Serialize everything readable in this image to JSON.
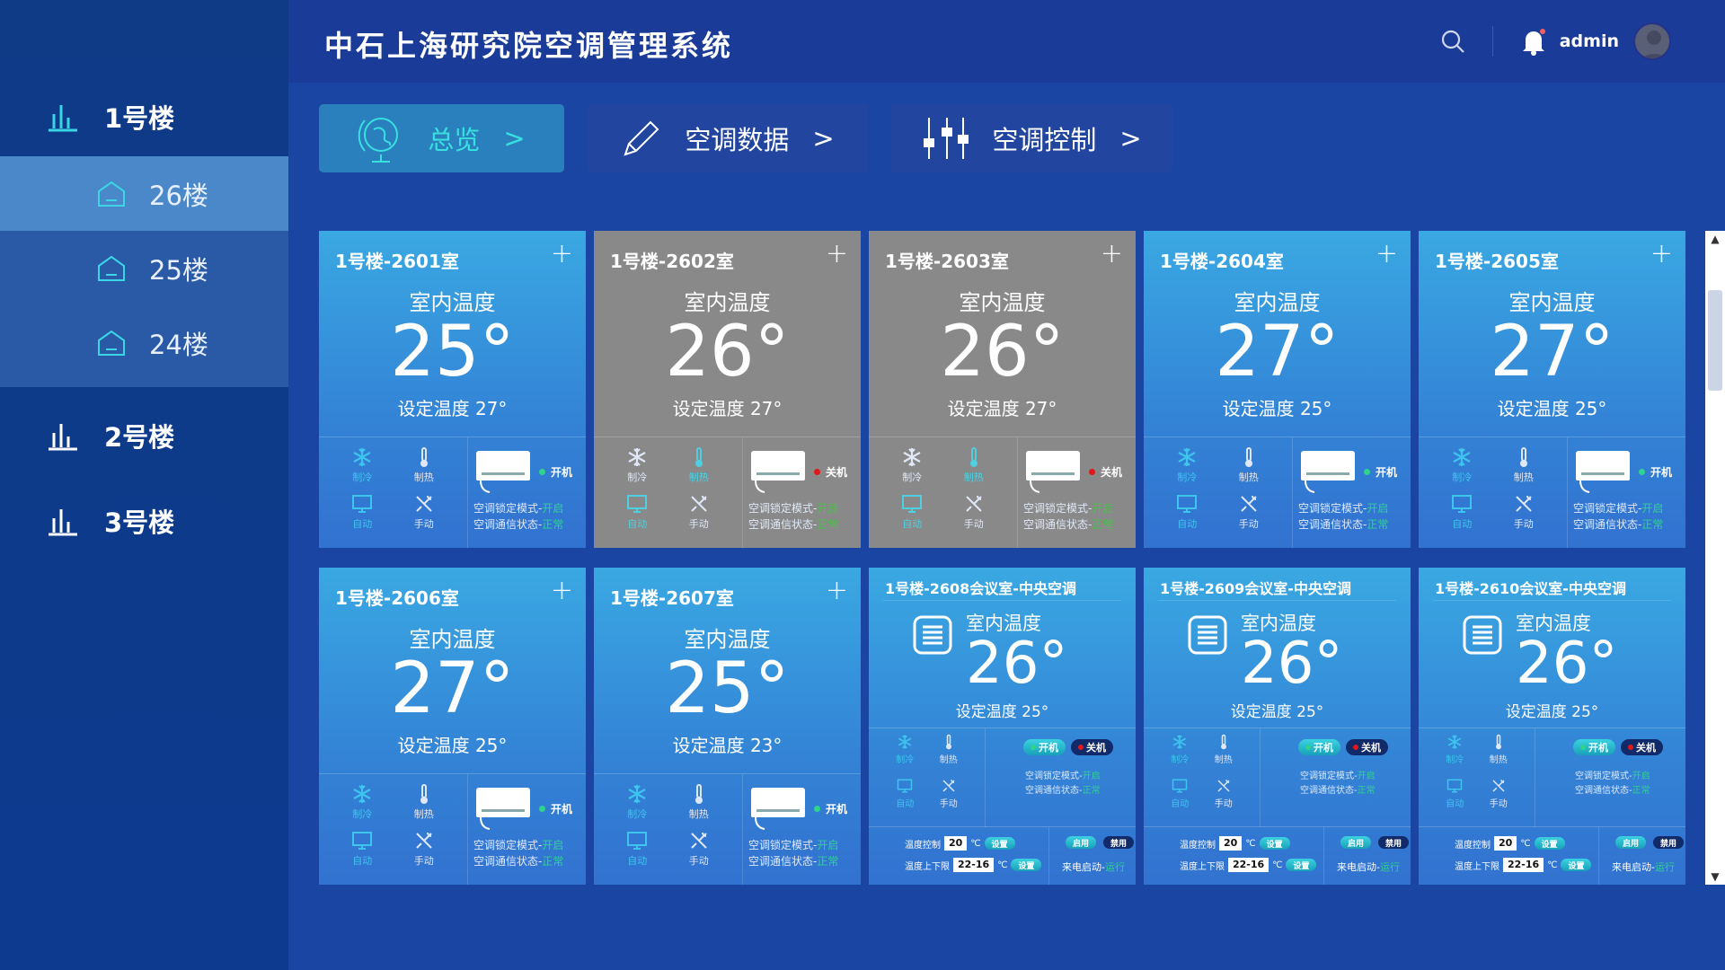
{
  "header": {
    "title": "中石上海研究院空调管理系统",
    "user": "admin"
  },
  "sidebar": {
    "buildings": [
      {
        "label": "1号楼"
      },
      {
        "label": "2号楼"
      },
      {
        "label": "3号楼"
      }
    ],
    "floors": [
      {
        "label": "26楼",
        "active": true
      },
      {
        "label": "25楼"
      },
      {
        "label": "24楼"
      }
    ]
  },
  "nav": [
    {
      "label": "总览",
      "icon": "globe-icon",
      "active": true
    },
    {
      "label": "空调数据",
      "icon": "pencil-icon"
    },
    {
      "label": "空调控制",
      "icon": "sliders-icon"
    }
  ],
  "labels": {
    "indoor": "室内温度",
    "cool": "制冷",
    "heat": "制热",
    "auto": "自动",
    "manual": "手动",
    "lock": "空调锁定模式-",
    "comm": "空调通信状态-",
    "on": "开机",
    "off": "关机",
    "temp_ctl": "温度控制",
    "temp_range": "温度上下限",
    "unit": "℃",
    "set": "设置",
    "enable": "启用",
    "disable": "禁用",
    "power_start": "来电启动-",
    "plus": "+"
  },
  "colors": {
    "card_on": "#3aa8e2",
    "card_off": "#898989",
    "active_mode": "#3dc5ee",
    "ok_green": "#2fd38c",
    "power_on_dot": "#2fd38c",
    "power_off_dot": "#e01818"
  },
  "cards": [
    {
      "type": "split",
      "title": "1号楼-2601室",
      "temp": "25°",
      "set": "设定温度 27°",
      "power": "开机",
      "is_on": true,
      "modes": [
        "cool",
        "auto"
      ],
      "lock_val": "开启",
      "comm_val": "正常"
    },
    {
      "type": "split",
      "title": "1号楼-2602室",
      "temp": "26°",
      "set": "设定温度 27°",
      "power": "关机",
      "is_on": false,
      "modes": [
        "heat",
        "auto"
      ],
      "lock_val": "开启",
      "comm_val": "正常"
    },
    {
      "type": "split",
      "title": "1号楼-2603室",
      "temp": "26°",
      "set": "设定温度 27°",
      "power": "关机",
      "is_on": false,
      "modes": [
        "heat",
        "auto"
      ],
      "lock_val": "开启",
      "comm_val": "正常"
    },
    {
      "type": "split",
      "title": "1号楼-2604室",
      "temp": "27°",
      "set": "设定温度 25°",
      "power": "开机",
      "is_on": true,
      "modes": [
        "cool",
        "auto"
      ],
      "lock_val": "开启",
      "comm_val": "正常"
    },
    {
      "type": "split",
      "title": "1号楼-2605室",
      "temp": "27°",
      "set": "设定温度 25°",
      "power": "开机",
      "is_on": true,
      "modes": [
        "cool",
        "auto"
      ],
      "lock_val": "开启",
      "comm_val": "正常"
    },
    {
      "type": "split",
      "title": "1号楼-2606室",
      "temp": "27°",
      "set": "设定温度 25°",
      "power": "开机",
      "is_on": true,
      "modes": [
        "cool",
        "auto"
      ],
      "lock_val": "开启",
      "comm_val": "正常"
    },
    {
      "type": "split",
      "title": "1号楼-2607室",
      "temp": "25°",
      "set": "设定温度 23°",
      "power": "开机",
      "is_on": true,
      "modes": [
        "cool",
        "auto"
      ],
      "lock_val": "开启",
      "comm_val": "正常"
    },
    {
      "type": "central",
      "title": "1号楼-2608会议室-中央空调",
      "temp": "26°",
      "set": "设定温度 25°",
      "modes": [
        "cool",
        "auto"
      ],
      "lock_val": "开启",
      "comm_val": "正常",
      "temp_ctl_val": "20",
      "temp_range_val": "22-16",
      "power_start_val": "运行"
    },
    {
      "type": "central",
      "title": "1号楼-2609会议室-中央空调",
      "temp": "26°",
      "set": "设定温度 25°",
      "modes": [
        "cool",
        "auto"
      ],
      "lock_val": "开启",
      "comm_val": "正常",
      "temp_ctl_val": "20",
      "temp_range_val": "22-16",
      "power_start_val": "运行"
    },
    {
      "type": "central",
      "title": "1号楼-2610会议室-中央空调",
      "temp": "26°",
      "set": "设定温度 25°",
      "modes": [
        "cool",
        "auto"
      ],
      "lock_val": "开启",
      "comm_val": "正常",
      "temp_ctl_val": "20",
      "temp_range_val": "22-16",
      "power_start_val": "运行"
    }
  ]
}
